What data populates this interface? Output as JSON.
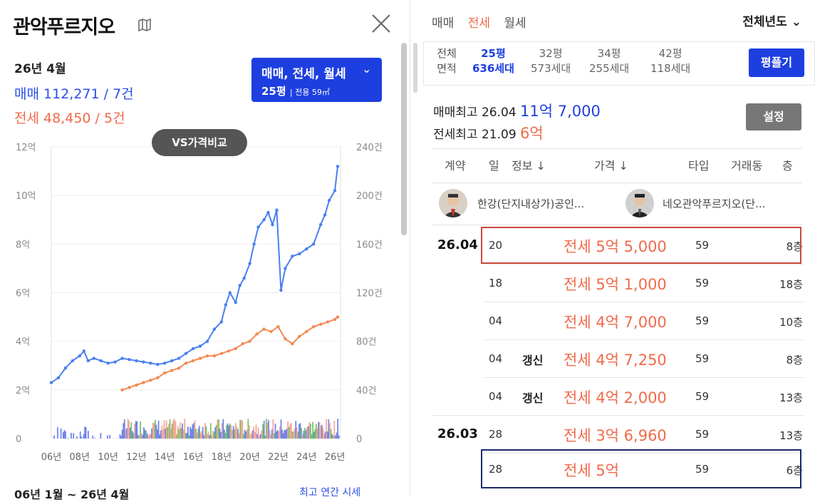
{
  "left": {
    "title": "관악푸르지오",
    "date": "26년 4월",
    "sale_label": "매매",
    "sale_value": "112,271 / 7건",
    "rent_label": "전세",
    "rent_value": "48,450 / 5건",
    "filter_top": "매매, 전세, 월세",
    "filter_area": "25평",
    "filter_sub": "| 전용 59㎡",
    "vs_button": "VS가격비교",
    "bottom_left": "06년 1월 ~ 26년 4월",
    "bottom_right": "최고 연간 시세"
  },
  "chart_data": {
    "type": "line",
    "x_ticks": [
      "06년",
      "08년",
      "10년",
      "12년",
      "14년",
      "16년",
      "18년",
      "20년",
      "22년",
      "24년",
      "26년"
    ],
    "y_left_ticks": [
      "0",
      "2억",
      "4억",
      "6억",
      "8억",
      "10억",
      "12억"
    ],
    "y_right_ticks": [
      "0",
      "40건",
      "80건",
      "120건",
      "160건",
      "200건",
      "240건"
    ],
    "y_left_range": [
      0,
      12
    ],
    "y_right_range": [
      0,
      240
    ],
    "x_range": [
      2006,
      2026.4
    ],
    "series": [
      {
        "color": "#4a7ff0",
        "points": [
          [
            2006,
            2.3
          ],
          [
            2006.5,
            2.5
          ],
          [
            2007,
            2.9
          ],
          [
            2007.5,
            3.2
          ],
          [
            2008,
            3.4
          ],
          [
            2008.3,
            3.6
          ],
          [
            2008.6,
            3.2
          ],
          [
            2009,
            3.3
          ],
          [
            2009.5,
            3.2
          ],
          [
            2010,
            3.1
          ],
          [
            2010.5,
            3.15
          ],
          [
            2011,
            3.3
          ],
          [
            2011.5,
            3.25
          ],
          [
            2012,
            3.2
          ],
          [
            2012.5,
            3.15
          ],
          [
            2013,
            3.1
          ],
          [
            2013.5,
            3.05
          ],
          [
            2014,
            3.1
          ],
          [
            2014.5,
            3.2
          ],
          [
            2015,
            3.3
          ],
          [
            2015.5,
            3.5
          ],
          [
            2016,
            3.7
          ],
          [
            2016.5,
            3.8
          ],
          [
            2017,
            4.0
          ],
          [
            2017.5,
            4.5
          ],
          [
            2018,
            4.8
          ],
          [
            2018.3,
            5.5
          ],
          [
            2018.6,
            6.0
          ],
          [
            2019,
            5.6
          ],
          [
            2019.3,
            6.3
          ],
          [
            2019.6,
            6.6
          ],
          [
            2020,
            7.2
          ],
          [
            2020.3,
            8.0
          ],
          [
            2020.6,
            8.7
          ],
          [
            2021,
            9.0
          ],
          [
            2021.3,
            9.3
          ],
          [
            2021.6,
            8.8
          ],
          [
            2021.9,
            9.4
          ],
          [
            2022.2,
            6.1
          ],
          [
            2022.5,
            7.0
          ],
          [
            2023,
            7.5
          ],
          [
            2023.5,
            7.6
          ],
          [
            2024,
            7.8
          ],
          [
            2024.5,
            8.0
          ],
          [
            2025,
            8.8
          ],
          [
            2025.3,
            9.2
          ],
          [
            2025.6,
            9.8
          ],
          [
            2026,
            10.2
          ],
          [
            2026.2,
            11.2
          ]
        ]
      },
      {
        "color": "#f28a55",
        "points": [
          [
            2011,
            2.0
          ],
          [
            2011.5,
            2.1
          ],
          [
            2012,
            2.2
          ],
          [
            2012.5,
            2.3
          ],
          [
            2013,
            2.4
          ],
          [
            2013.5,
            2.5
          ],
          [
            2014,
            2.7
          ],
          [
            2014.5,
            2.8
          ],
          [
            2015,
            2.9
          ],
          [
            2015.5,
            3.1
          ],
          [
            2016,
            3.2
          ],
          [
            2016.5,
            3.3
          ],
          [
            2017,
            3.4
          ],
          [
            2017.5,
            3.4
          ],
          [
            2018,
            3.5
          ],
          [
            2018.5,
            3.6
          ],
          [
            2019,
            3.7
          ],
          [
            2019.5,
            3.9
          ],
          [
            2020,
            4.0
          ],
          [
            2020.5,
            4.3
          ],
          [
            2021,
            4.5
          ],
          [
            2021.5,
            4.4
          ],
          [
            2022,
            4.6
          ],
          [
            2022.5,
            4.1
          ],
          [
            2023,
            3.9
          ],
          [
            2023.5,
            4.2
          ],
          [
            2024,
            4.4
          ],
          [
            2024.5,
            4.6
          ],
          [
            2025,
            4.7
          ],
          [
            2025.5,
            4.8
          ],
          [
            2026,
            4.9
          ],
          [
            2026.2,
            5.0
          ]
        ]
      }
    ]
  },
  "right": {
    "tabs": [
      "매매",
      "전세",
      "월세"
    ],
    "active_tab": 1,
    "year_select": "전체년도",
    "area_label_1": "전체",
    "area_label_2": "면적",
    "areas": [
      {
        "p": "25평",
        "h": "636세대"
      },
      {
        "p": "32평",
        "h": "573세대"
      },
      {
        "p": "34평",
        "h": "255세대"
      },
      {
        "p": "42평",
        "h": "118세대"
      }
    ],
    "pyeong_button": "평플기",
    "max_sale_label": "매매최고",
    "max_sale_date": "26.04",
    "max_sale_price": "11억 7,000",
    "max_rent_label": "전세최고",
    "max_rent_date": "21.09",
    "max_rent_price": "6억",
    "settings_button": "설정",
    "headers": [
      "계약",
      "일",
      "정보 ↓",
      "가격 ↓",
      "타입",
      "거래동",
      "층"
    ],
    "agent_1": "한강(단지내상가)공인...",
    "agent_2": "네오관악푸르지오(단...",
    "rows": [
      {
        "date": "26.04",
        "day": "20",
        "info": "",
        "price": "전세 5억 5,000",
        "type": "59",
        "floor": "8층"
      },
      {
        "date": "",
        "day": "18",
        "info": "",
        "price": "전세 5억 1,000",
        "type": "59",
        "floor": "18층"
      },
      {
        "date": "",
        "day": "04",
        "info": "",
        "price": "전세 4억 7,000",
        "type": "59",
        "floor": "10층"
      },
      {
        "date": "",
        "day": "04",
        "info": "갱신",
        "price": "전세 4억 7,250",
        "type": "59",
        "floor": "8층"
      },
      {
        "date": "",
        "day": "04",
        "info": "갱신",
        "price": "전세 4억 2,000",
        "type": "59",
        "floor": "13층"
      },
      {
        "date": "26.03",
        "day": "28",
        "info": "",
        "price": "전세 3억 6,960",
        "type": "59",
        "floor": "13층"
      },
      {
        "date": "",
        "day": "28",
        "info": "",
        "price": "전세 5억",
        "type": "59",
        "floor": "6층"
      }
    ]
  }
}
